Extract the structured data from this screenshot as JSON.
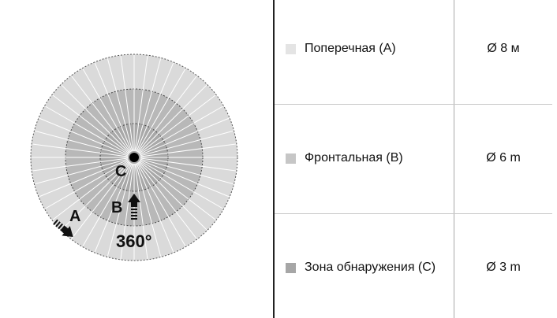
{
  "diagram": {
    "zone_labels": {
      "a": "A",
      "b": "B",
      "c": "C"
    },
    "angle_label": "360°",
    "colors": {
      "outer": "#dadada",
      "middle": "#b8b8b8",
      "inner": "#a8a8a8"
    }
  },
  "table": {
    "rows": [
      {
        "label": "Поперечная (A)",
        "value": "Ø 8 м",
        "color": "#e4e4e4"
      },
      {
        "label": "Фронтальная (B)",
        "value": "Ø 6 m",
        "color": "#c6c6c6"
      },
      {
        "label": "Зона обнаружения (C)",
        "value": "Ø 3 m",
        "color": "#a6a6a6"
      }
    ]
  }
}
